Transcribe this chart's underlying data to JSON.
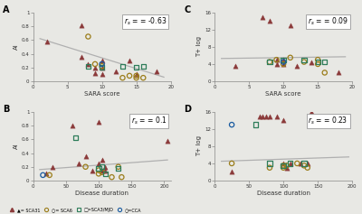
{
  "panel_A": {
    "title": "A",
    "xlabel": "SARA score",
    "ylabel": "AI",
    "xlim": [
      0,
      20
    ],
    "ylim": [
      0,
      1
    ],
    "yticks": [
      0,
      0.2,
      0.4,
      0.6,
      0.8,
      1
    ],
    "ytick_labels": [
      "0",
      "0.2",
      "0.4",
      "0.6",
      "0.8",
      "1"
    ],
    "xticks": [
      0,
      5,
      10,
      15,
      20
    ],
    "rs": "r s = -0.63",
    "trend": [
      1,
      19,
      0.62,
      0.06
    ],
    "SCA31": [
      [
        2,
        0.58
      ],
      [
        7,
        0.35
      ],
      [
        7,
        0.82
      ],
      [
        8,
        0.25
      ],
      [
        9,
        0.2
      ],
      [
        9,
        0.12
      ],
      [
        10,
        0.2
      ],
      [
        10,
        0.1
      ],
      [
        10,
        0.3
      ],
      [
        12,
        0.15
      ],
      [
        14,
        0.3
      ],
      [
        15,
        0.1
      ],
      [
        18,
        0.15
      ]
    ],
    "SCA6": [
      [
        8,
        0.65
      ],
      [
        9,
        0.25
      ],
      [
        10,
        0.22
      ],
      [
        13,
        0.05
      ],
      [
        14,
        0.08
      ],
      [
        15,
        0.08
      ],
      [
        15,
        0.05
      ],
      [
        16,
        0.05
      ]
    ],
    "SCA3": [
      [
        8,
        0.22
      ],
      [
        10,
        0.2
      ],
      [
        13,
        0.22
      ],
      [
        15,
        0.2
      ],
      [
        16,
        0.22
      ]
    ],
    "CCA": [
      [
        10,
        0.25
      ]
    ]
  },
  "panel_B": {
    "title": "B",
    "xlabel": "Disease duration",
    "ylabel": "AI",
    "xlim": [
      0,
      210
    ],
    "ylim": [
      0,
      1
    ],
    "yticks": [
      0,
      0.2,
      0.4,
      0.6,
      0.8,
      1
    ],
    "ytick_labels": [
      "0",
      "0.2",
      "0.4",
      "0.6",
      "0.8",
      "1"
    ],
    "xticks": [
      0,
      50,
      100,
      150,
      200
    ],
    "rs": "r s = 0.1",
    "trend": [
      10,
      205,
      0.16,
      0.3
    ],
    "SCA31": [
      [
        20,
        0.1
      ],
      [
        30,
        0.2
      ],
      [
        60,
        0.8
      ],
      [
        70,
        0.25
      ],
      [
        80,
        0.35
      ],
      [
        90,
        0.15
      ],
      [
        100,
        0.85
      ],
      [
        100,
        0.25
      ],
      [
        105,
        0.15
      ],
      [
        105,
        0.3
      ],
      [
        110,
        0.2
      ],
      [
        110,
        0.15
      ],
      [
        205,
        0.58
      ]
    ],
    "SCA6": [
      [
        25,
        0.08
      ],
      [
        80,
        0.2
      ],
      [
        100,
        0.15
      ],
      [
        100,
        0.1
      ],
      [
        105,
        0.12
      ],
      [
        120,
        0.05
      ],
      [
        130,
        0.2
      ],
      [
        135,
        0.05
      ]
    ],
    "SCA3": [
      [
        65,
        0.62
      ],
      [
        100,
        0.18
      ],
      [
        105,
        0.2
      ],
      [
        110,
        0.1
      ],
      [
        130,
        0.18
      ]
    ],
    "CCA": [
      [
        15,
        0.08
      ]
    ]
  },
  "panel_C": {
    "title": "C",
    "xlabel": "SARA score",
    "ylabel": "T+ log",
    "xlim": [
      0,
      20
    ],
    "ylim": [
      0,
      16
    ],
    "yticks": [
      0,
      4,
      8,
      12,
      16
    ],
    "ytick_labels": [
      "0",
      "4",
      "8",
      "12",
      "16"
    ],
    "xticks": [
      0,
      5,
      10,
      15,
      20
    ],
    "rs": "r s = 0.09",
    "trend": [
      1,
      19,
      5.3,
      5.7
    ],
    "SCA31": [
      [
        3,
        3.5
      ],
      [
        7,
        15
      ],
      [
        8,
        14
      ],
      [
        9,
        5
      ],
      [
        9,
        4
      ],
      [
        10,
        4
      ],
      [
        10,
        5
      ],
      [
        11,
        13
      ],
      [
        12,
        3.5
      ],
      [
        14,
        4.5
      ],
      [
        15,
        15
      ],
      [
        18,
        2
      ]
    ],
    "SCA6": [
      [
        8,
        4.5
      ],
      [
        9,
        5
      ],
      [
        10,
        4
      ],
      [
        11,
        5.5
      ],
      [
        13,
        4.5
      ],
      [
        15,
        5
      ],
      [
        15,
        4
      ],
      [
        16,
        2
      ]
    ],
    "SCA3": [
      [
        8,
        4.5
      ],
      [
        10,
        5
      ],
      [
        13,
        5
      ],
      [
        15,
        4.5
      ],
      [
        16,
        4.5
      ]
    ],
    "CCA": [
      [
        10,
        4.5
      ]
    ]
  },
  "panel_D": {
    "title": "D",
    "xlabel": "Disease duration",
    "ylabel": "T+ log",
    "xlim": [
      0,
      200
    ],
    "ylim": [
      0,
      16
    ],
    "yticks": [
      0,
      4,
      8,
      12,
      16
    ],
    "ytick_labels": [
      "0",
      "4",
      "8",
      "12",
      "16"
    ],
    "xticks": [
      0,
      50,
      100,
      150,
      200
    ],
    "rs": "r s = 0.23",
    "trend": [
      10,
      195,
      4.5,
      5.5
    ],
    "SCA31": [
      [
        25,
        2
      ],
      [
        65,
        15
      ],
      [
        70,
        15
      ],
      [
        75,
        15
      ],
      [
        80,
        15
      ],
      [
        90,
        15
      ],
      [
        100,
        4
      ],
      [
        100,
        14
      ],
      [
        105,
        3
      ],
      [
        110,
        4
      ],
      [
        125,
        4
      ],
      [
        135,
        4
      ],
      [
        140,
        16
      ]
    ],
    "SCA6": [
      [
        25,
        4
      ],
      [
        80,
        3
      ],
      [
        100,
        3.5
      ],
      [
        100,
        3
      ],
      [
        105,
        3.5
      ],
      [
        120,
        4
      ],
      [
        130,
        3.5
      ],
      [
        135,
        3
      ]
    ],
    "SCA3": [
      [
        60,
        13
      ],
      [
        80,
        4
      ],
      [
        100,
        3.5
      ],
      [
        110,
        4
      ],
      [
        130,
        4
      ]
    ],
    "CCA": [
      [
        25,
        13
      ]
    ]
  },
  "colors": {
    "SCA31": "#8B3A3A",
    "SCA6": "#9B7D1A",
    "SCA3": "#2E7D5A",
    "CCA": "#1a5ba0"
  },
  "bg_color": "#ffffff",
  "fig_bg": "#e8e8e4"
}
